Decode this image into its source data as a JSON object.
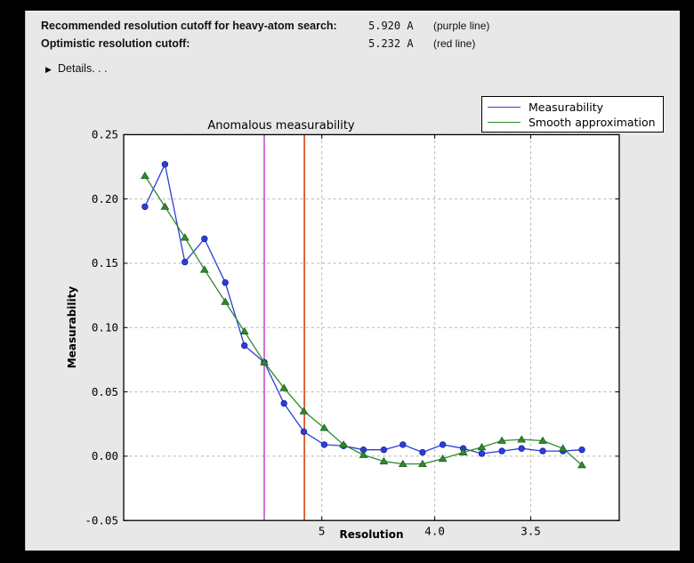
{
  "header": {
    "rows": [
      {
        "label": "Recommended resolution cutoff for heavy-atom search:",
        "value": "5.920 A",
        "note": "(purple line)"
      },
      {
        "label": "Optimistic resolution cutoff:",
        "value": "5.232 A",
        "note": "(red line)"
      }
    ],
    "details_label": "Details. . .",
    "disclosure_icon": "▶"
  },
  "colors": {
    "window_bg": "#e8e8e8",
    "plot_bg": "#ffffff",
    "frame": "#000000",
    "grid": "#b5b5b5",
    "tick_text": "#000000"
  },
  "chart_data": {
    "type": "line",
    "title": "Anomalous measurability",
    "xlabel": "Resolution",
    "ylabel": "Measurability",
    "x_axis": {
      "scale": "reversed resolution, linear in 1/d^2",
      "tick_labels": [
        "5",
        "4.0",
        "3.5"
      ],
      "tick_values": [
        5,
        4.0,
        3.5
      ],
      "range_d": [
        44.1,
        3.17
      ]
    },
    "y_axis": {
      "tick_labels": [
        "0.25",
        "0.20",
        "0.15",
        "0.10",
        "0.05",
        "0.00",
        "-0.05"
      ],
      "tick_values": [
        0.25,
        0.2,
        0.15,
        0.1,
        0.05,
        0.0,
        -0.05
      ],
      "range": [
        -0.05,
        0.25
      ]
    },
    "grid": true,
    "legend_position": "upper right, outside plot",
    "legend": [
      {
        "label": "Measurability",
        "color": "#2b3fd6"
      },
      {
        "label": "Smooth approximation",
        "color": "#2e8b2e"
      }
    ],
    "resolution_d": [
      14.5,
      10.7,
      8.87,
      7.76,
      6.94,
      6.38,
      5.92,
      5.55,
      5.24,
      4.97,
      4.75,
      4.55,
      4.37,
      4.22,
      4.08,
      3.95,
      3.83,
      3.73,
      3.63,
      3.54,
      3.45,
      3.37,
      3.3
    ],
    "series": [
      {
        "name": "Measurability",
        "marker": "circle",
        "color": "#2b3fd6",
        "edge_color": "#17259c",
        "values": [
          0.194,
          0.227,
          0.151,
          0.169,
          0.135,
          0.086,
          0.073,
          0.041,
          0.019,
          0.009,
          0.008,
          0.005,
          0.005,
          0.009,
          0.003,
          0.009,
          0.006,
          0.002,
          0.004,
          0.006,
          0.004,
          0.004,
          0.005
        ]
      },
      {
        "name": "Smooth approximation",
        "marker": "triangle",
        "color": "#2e8b2e",
        "edge_color": "#1c5c1c",
        "values": [
          0.218,
          0.194,
          0.17,
          0.145,
          0.12,
          0.097,
          0.073,
          0.053,
          0.035,
          0.022,
          0.009,
          0.001,
          -0.004,
          -0.006,
          -0.006,
          -0.002,
          0.003,
          0.007,
          0.012,
          0.013,
          0.012,
          0.006,
          -0.007
        ]
      }
    ],
    "cutoff_lines": [
      {
        "name": "recommended-heavy-atom-cutoff",
        "d": 5.92,
        "color": "#c84fc8"
      },
      {
        "name": "optimistic-cutoff",
        "d": 5.232,
        "color": "#d9420e"
      }
    ]
  }
}
